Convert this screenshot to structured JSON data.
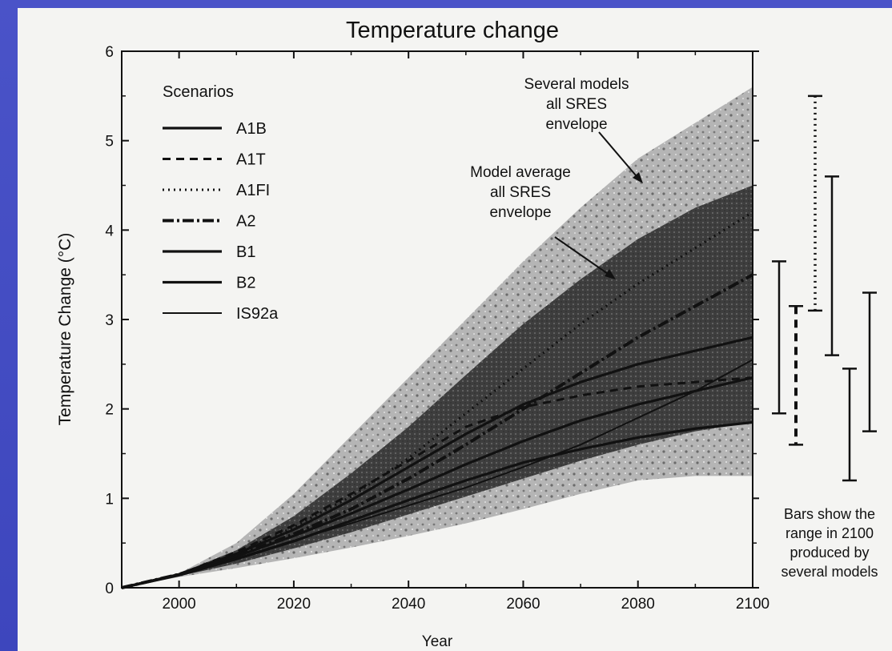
{
  "chart_data": {
    "type": "line",
    "title": "Temperature change",
    "xlabel": "Year",
    "ylabel": "Temperature Change (°C)",
    "xlim": [
      1990,
      2100
    ],
    "ylim": [
      0,
      6
    ],
    "xticks": [
      2000,
      2020,
      2040,
      2060,
      2080,
      2100
    ],
    "yticks": [
      0,
      1,
      2,
      3,
      4,
      5,
      6
    ],
    "grid": false,
    "legend": {
      "title": "Scenarios",
      "placement": "top-left",
      "entries": [
        {
          "label": "A1B",
          "style": "solid"
        },
        {
          "label": "A1T",
          "style": "dashed"
        },
        {
          "label": "A1FI",
          "style": "dotted"
        },
        {
          "label": "A2",
          "style": "dashdot"
        },
        {
          "label": "B1",
          "style": "solid"
        },
        {
          "label": "B2",
          "style": "solid"
        },
        {
          "label": "IS92a",
          "style": "solid-thin"
        }
      ]
    },
    "x": [
      1990,
      2000,
      2010,
      2020,
      2030,
      2040,
      2050,
      2060,
      2070,
      2080,
      2090,
      2100
    ],
    "series": [
      {
        "name": "A1B",
        "style": "solid",
        "values": [
          0,
          0.15,
          0.38,
          0.65,
          0.98,
          1.35,
          1.72,
          2.05,
          2.3,
          2.5,
          2.65,
          2.8
        ]
      },
      {
        "name": "A1T",
        "style": "dashed",
        "values": [
          0,
          0.15,
          0.4,
          0.7,
          1.05,
          1.42,
          1.8,
          2.02,
          2.15,
          2.25,
          2.3,
          2.35
        ]
      },
      {
        "name": "A1FI",
        "style": "dotted",
        "values": [
          0,
          0.15,
          0.38,
          0.68,
          1.02,
          1.45,
          1.95,
          2.45,
          2.95,
          3.4,
          3.8,
          4.2
        ]
      },
      {
        "name": "A2",
        "style": "dashdot",
        "values": [
          0,
          0.15,
          0.36,
          0.6,
          0.88,
          1.22,
          1.6,
          2.0,
          2.4,
          2.8,
          3.15,
          3.5
        ]
      },
      {
        "name": "B1",
        "style": "solid",
        "values": [
          0,
          0.14,
          0.32,
          0.52,
          0.75,
          0.98,
          1.2,
          1.4,
          1.55,
          1.68,
          1.78,
          1.85
        ]
      },
      {
        "name": "B2",
        "style": "solid",
        "values": [
          0,
          0.15,
          0.35,
          0.58,
          0.83,
          1.1,
          1.38,
          1.64,
          1.87,
          2.05,
          2.2,
          2.35
        ]
      },
      {
        "name": "IS92a",
        "style": "solid-thin",
        "values": [
          0,
          0.15,
          0.33,
          0.53,
          0.72,
          0.92,
          1.12,
          1.35,
          1.6,
          1.9,
          2.2,
          2.55
        ]
      }
    ],
    "envelopes": [
      {
        "label": "Several models all SRES envelope",
        "upper": [
          0,
          0.16,
          0.5,
          1.05,
          1.7,
          2.35,
          3.0,
          3.65,
          4.25,
          4.8,
          5.2,
          5.6
        ],
        "lower": [
          0,
          0.12,
          0.22,
          0.33,
          0.45,
          0.58,
          0.72,
          0.88,
          1.05,
          1.2,
          1.25,
          1.25
        ]
      },
      {
        "label": "Model average all SRES envelope",
        "upper": [
          0,
          0.16,
          0.42,
          0.8,
          1.28,
          1.8,
          2.38,
          2.95,
          3.45,
          3.9,
          4.25,
          4.5
        ],
        "lower": [
          0,
          0.13,
          0.27,
          0.44,
          0.62,
          0.82,
          1.02,
          1.22,
          1.42,
          1.6,
          1.75,
          1.85
        ]
      }
    ],
    "range_bars_2100": [
      {
        "name": "A1B",
        "style": "solid",
        "low": 1.95,
        "high": 3.65
      },
      {
        "name": "A1T",
        "style": "dashed",
        "low": 1.6,
        "high": 3.15
      },
      {
        "name": "A1FI",
        "style": "dotted",
        "low": 3.1,
        "high": 5.5
      },
      {
        "name": "A2",
        "style": "solid",
        "low": 2.6,
        "high": 4.6
      },
      {
        "name": "B1",
        "style": "solid",
        "low": 1.2,
        "high": 2.45
      },
      {
        "name": "B2",
        "style": "solid",
        "low": 1.75,
        "high": 3.3
      }
    ],
    "annotations": [
      {
        "id": "several",
        "lines": [
          "Several models",
          "all SRES",
          "envelope"
        ]
      },
      {
        "id": "average",
        "lines": [
          "Model average",
          "all SRES",
          "envelope"
        ]
      },
      {
        "id": "bars",
        "lines": [
          "Bars show the",
          "range in 2100",
          "produced by",
          "several models"
        ]
      }
    ]
  }
}
